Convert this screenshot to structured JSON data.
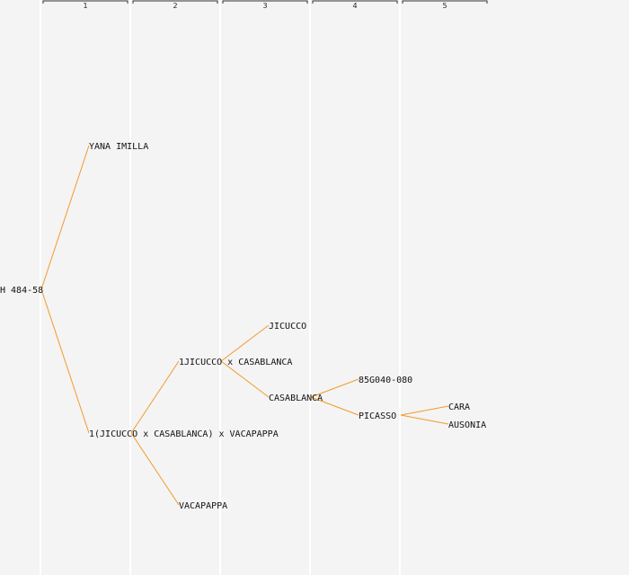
{
  "generations": [
    "1",
    "2",
    "3",
    "4",
    "5"
  ],
  "nodes": {
    "root": "H 484-58",
    "yana_imilla": "YANA IMILLA",
    "cross_main": "1(JICUCCO x CASABLANCA) x VACAPAPPA",
    "cross_jc": "1JICUCCO x CASABLANCA",
    "vacapappa": "VACAPAPPA",
    "jicucco": "JICUCCO",
    "casablanca": "CASABLANCA",
    "g85": "85G040-080",
    "picasso": "PICASSO",
    "cara": "CARA",
    "ausonia": "AUSONIA"
  },
  "edges": [
    [
      "root",
      "yana_imilla"
    ],
    [
      "root",
      "cross_main"
    ],
    [
      "cross_main",
      "cross_jc"
    ],
    [
      "cross_main",
      "vacapappa"
    ],
    [
      "cross_jc",
      "jicucco"
    ],
    [
      "cross_jc",
      "casablanca"
    ],
    [
      "casablanca",
      "g85"
    ],
    [
      "casablanca",
      "picasso"
    ],
    [
      "picasso",
      "cara"
    ],
    [
      "picasso",
      "ausonia"
    ]
  ],
  "colors": {
    "edge": "#f39a2a",
    "background": "#f4f4f4"
  }
}
